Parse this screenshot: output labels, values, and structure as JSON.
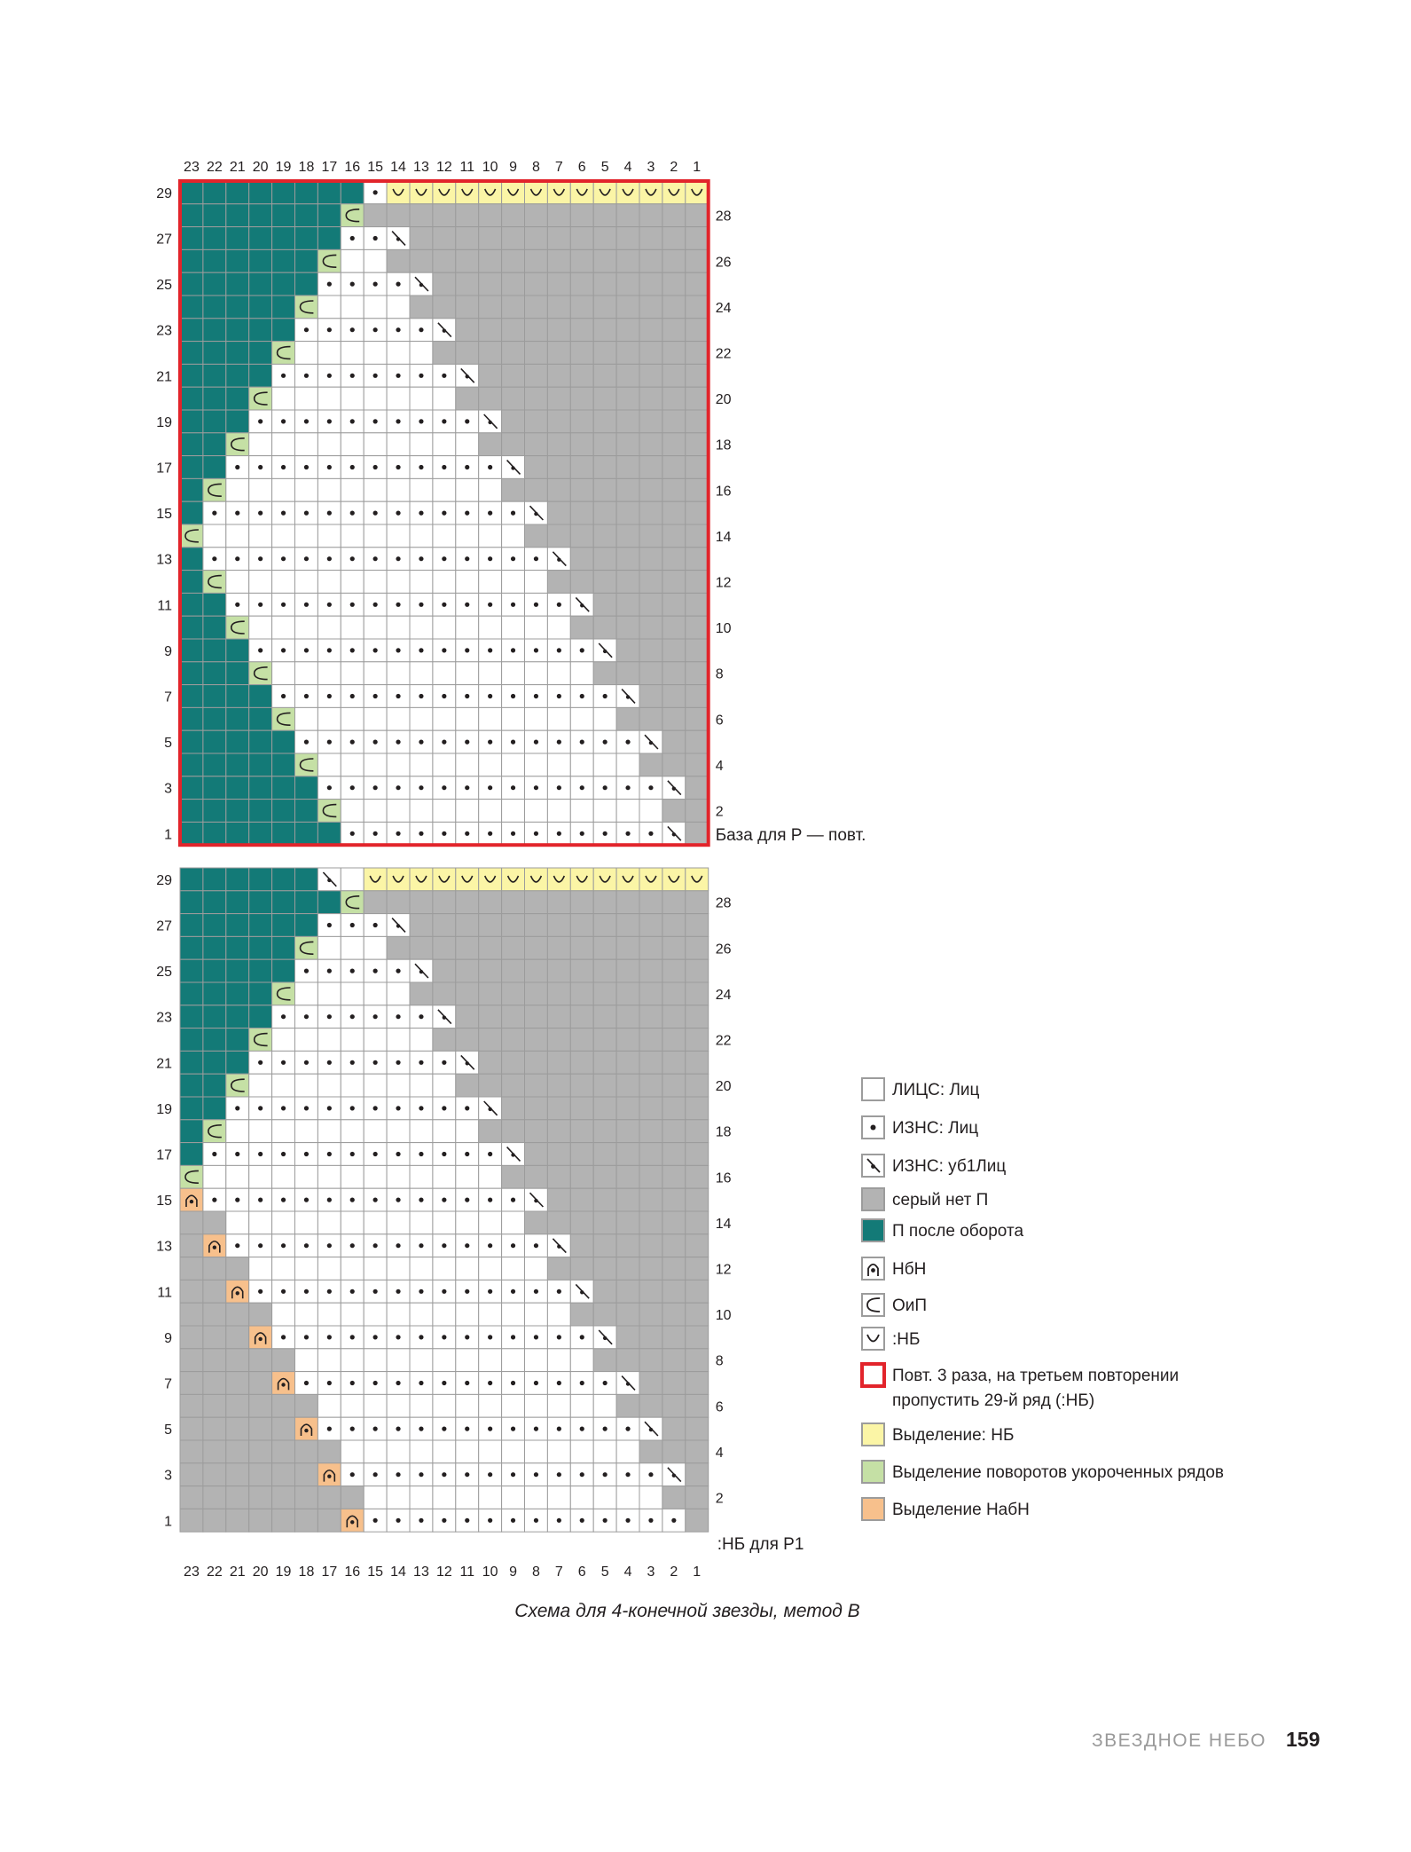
{
  "chart": {
    "columns": 23,
    "rows_per_block": 29,
    "column_numbers": [
      "23",
      "22",
      "21",
      "20",
      "19",
      "18",
      "17",
      "16",
      "15",
      "14",
      "13",
      "12",
      "11",
      "10",
      "9",
      "8",
      "7",
      "6",
      "5",
      "4",
      "3",
      "2",
      "1"
    ],
    "odd_row_numbers": [
      "29",
      "27",
      "25",
      "23",
      "21",
      "19",
      "17",
      "15",
      "13",
      "11",
      "9",
      "7",
      "5",
      "3",
      "1"
    ],
    "even_row_numbers": [
      "28",
      "26",
      "24",
      "22",
      "20",
      "18",
      "16",
      "14",
      "12",
      "10",
      "8",
      "6",
      "4",
      "2"
    ],
    "top_block_end_label": "База для Р — повт.",
    "bottom_block_end_label": ":НБ для Р1",
    "colors": {
      "gray": "#b3b3b3",
      "teal": "#137a77",
      "white": "#ffffff",
      "yellow": "#fbf5a6",
      "green": "#c5e0a5",
      "orange": "#f7c08c",
      "repeat_frame": "#e2242b",
      "grid_line": "#9c9c9c"
    }
  },
  "legend": [
    {
      "symbol": "white",
      "text": "ЛИЦС: Лиц"
    },
    {
      "symbol": "dot",
      "text": "ИЗНС: Лиц"
    },
    {
      "symbol": "slash-dot",
      "text": "ИЗНС: уб1Лиц"
    },
    {
      "symbol": "gray",
      "text": "серый нет П"
    },
    {
      "symbol": "teal",
      "text": "П после оборота"
    },
    {
      "symbol": "arch-dot",
      "text": "НбН"
    },
    {
      "symbol": "c-shape",
      "text": "ОиП"
    },
    {
      "symbol": "u-shape",
      "text": ":НБ"
    },
    {
      "symbol": "red-frame",
      "text": "Повт. 3 раза, на третьем повторении",
      "text2": "пропустить 29-й ряд (:НБ)"
    },
    {
      "symbol": "yellow",
      "text": "Выделение: НБ"
    },
    {
      "symbol": "green",
      "text": "Выделение поворотов укороченных рядов"
    },
    {
      "symbol": "orange",
      "text": "Выделение НабН"
    }
  ],
  "caption": "Схема для 4-конечной звезды, метод B",
  "footer": {
    "section_title": "ЗВЕЗДНОЕ НЕБО",
    "page_number": "159"
  }
}
